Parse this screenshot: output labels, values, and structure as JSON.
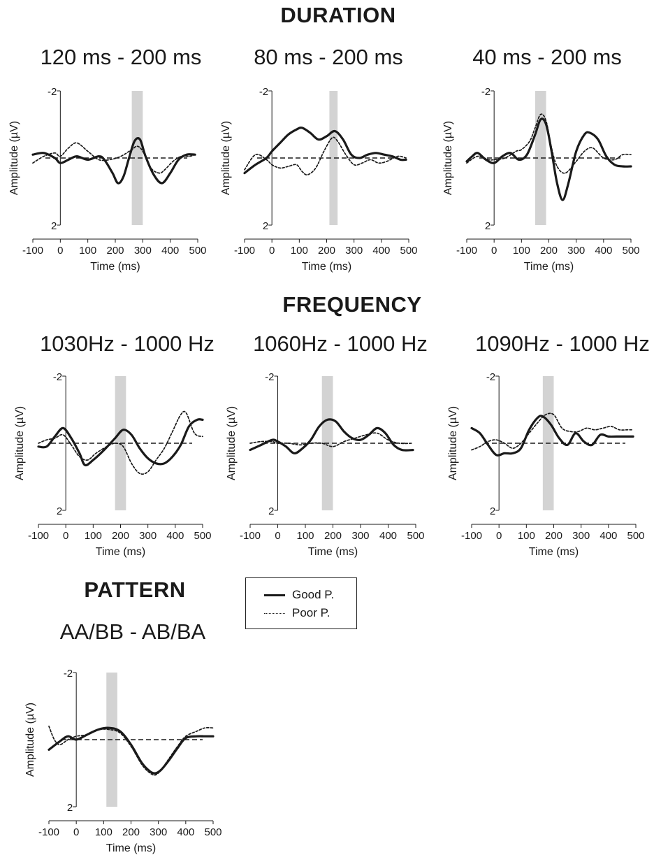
{
  "sections": {
    "duration": "DURATION",
    "frequency": "FREQUENCY",
    "pattern": "PATTERN"
  },
  "legend": {
    "good": "Good P.",
    "poor": "Poor P."
  },
  "colors": {
    "good": "#1a1a1a",
    "poor": "#1a1a1a",
    "window": "#d3d3d3",
    "baseline": "#1a1a1a"
  },
  "chart_data": [
    {
      "id": "dur120",
      "type": "line",
      "title": "120 ms - 200 ms",
      "xlabel": "Time (ms)",
      "ylabel": "Amplitude (µV)",
      "xlim": [
        -100,
        500
      ],
      "ylim": [
        -2,
        2
      ],
      "y_inverted": true,
      "xticks": [
        "-100",
        "0",
        "100",
        "200",
        "300",
        "400",
        "500"
      ],
      "yticks": [
        "-2",
        "2"
      ],
      "window": [
        260,
        300
      ],
      "series": [
        {
          "name": "Good P.",
          "style": "solid",
          "x": [
            -100,
            -60,
            -20,
            0,
            30,
            60,
            100,
            140,
            160,
            190,
            210,
            230,
            250,
            270,
            290,
            310,
            340,
            370,
            400,
            430,
            460,
            490
          ],
          "y": [
            -0.1,
            -0.15,
            0.0,
            0.15,
            0.05,
            -0.05,
            0.05,
            -0.05,
            0.05,
            0.45,
            0.75,
            0.55,
            0.0,
            -0.5,
            -0.55,
            -0.05,
            0.5,
            0.75,
            0.45,
            0.05,
            -0.1,
            -0.1
          ]
        },
        {
          "name": "Poor P.",
          "style": "dotted",
          "x": [
            -100,
            -60,
            -20,
            0,
            30,
            60,
            100,
            140,
            180,
            220,
            260,
            280,
            300,
            330,
            360,
            380,
            410,
            440,
            470,
            490
          ],
          "y": [
            0.15,
            -0.05,
            -0.15,
            -0.05,
            -0.3,
            -0.45,
            -0.2,
            0.05,
            0.05,
            -0.05,
            -0.25,
            -0.35,
            -0.2,
            0.3,
            0.45,
            0.35,
            0.1,
            -0.05,
            -0.05,
            -0.1
          ]
        }
      ]
    },
    {
      "id": "dur80",
      "type": "line",
      "title": "80 ms - 200 ms",
      "xlabel": "Time (ms)",
      "ylabel": "Amplitude (µV)",
      "xlim": [
        -100,
        500
      ],
      "ylim": [
        -2,
        2
      ],
      "y_inverted": true,
      "xticks": [
        "-100",
        "0",
        "100",
        "200",
        "300",
        "400",
        "500"
      ],
      "yticks": [
        "-2",
        "2"
      ],
      "window": [
        210,
        240
      ],
      "series": [
        {
          "name": "Good P.",
          "style": "solid",
          "x": [
            -100,
            -60,
            -20,
            0,
            30,
            60,
            90,
            110,
            140,
            170,
            200,
            230,
            260,
            290,
            320,
            350,
            380,
            410,
            440,
            470,
            490
          ],
          "y": [
            0.45,
            0.2,
            0.0,
            -0.2,
            -0.45,
            -0.7,
            -0.85,
            -0.9,
            -0.75,
            -0.55,
            -0.65,
            -0.8,
            -0.55,
            -0.1,
            0.0,
            -0.1,
            -0.15,
            -0.1,
            -0.05,
            0.05,
            0.05
          ]
        },
        {
          "name": "Poor P.",
          "style": "dotted",
          "x": [
            -100,
            -60,
            -20,
            0,
            30,
            60,
            90,
            110,
            130,
            160,
            190,
            220,
            240,
            270,
            300,
            330,
            360,
            390,
            420,
            460,
            490
          ],
          "y": [
            0.35,
            -0.1,
            0.05,
            0.2,
            0.3,
            0.25,
            0.2,
            0.4,
            0.5,
            0.3,
            -0.2,
            -0.6,
            -0.5,
            -0.1,
            0.2,
            0.15,
            0.05,
            0.15,
            0.1,
            -0.05,
            0.0
          ]
        }
      ]
    },
    {
      "id": "dur40",
      "type": "line",
      "title": "40 ms - 200 ms",
      "xlabel": "Time (ms)",
      "ylabel": "Amplitude (µV)",
      "xlim": [
        -100,
        500
      ],
      "ylim": [
        -2,
        2
      ],
      "y_inverted": true,
      "xticks": [
        "-100",
        "0",
        "100",
        "200",
        "300",
        "400",
        "500"
      ],
      "yticks": [
        "-2",
        "2"
      ],
      "window": [
        150,
        190
      ],
      "series": [
        {
          "name": "Good P.",
          "style": "solid",
          "x": [
            -100,
            -80,
            -60,
            -30,
            0,
            30,
            60,
            90,
            120,
            150,
            170,
            190,
            210,
            230,
            250,
            270,
            300,
            330,
            350,
            380,
            410,
            440,
            470,
            500
          ],
          "y": [
            0.1,
            -0.05,
            -0.15,
            0.05,
            0.15,
            -0.05,
            -0.15,
            0.05,
            -0.1,
            -0.7,
            -1.15,
            -1.0,
            -0.2,
            0.75,
            1.25,
            0.8,
            -0.2,
            -0.7,
            -0.75,
            -0.55,
            -0.05,
            0.2,
            0.25,
            0.25
          ]
        },
        {
          "name": "Poor P.",
          "style": "dotted",
          "x": [
            -100,
            -60,
            -20,
            0,
            40,
            80,
            100,
            130,
            150,
            170,
            190,
            210,
            230,
            260,
            300,
            330,
            360,
            400,
            440,
            470,
            500
          ],
          "y": [
            0.15,
            -0.05,
            0.05,
            0.05,
            0.0,
            -0.2,
            -0.25,
            -0.5,
            -0.9,
            -1.3,
            -1.1,
            -0.3,
            0.25,
            0.45,
            0.1,
            -0.2,
            -0.3,
            0.0,
            0.05,
            -0.1,
            -0.1
          ]
        }
      ]
    },
    {
      "id": "freq1030",
      "type": "line",
      "title": "1030Hz - 1000 Hz",
      "xlabel": "Time (ms)",
      "ylabel": "Amplitude (µV)",
      "xlim": [
        -100,
        500
      ],
      "ylim": [
        -2,
        2
      ],
      "y_inverted": true,
      "xticks": [
        "-100",
        "0",
        "100",
        "200",
        "300",
        "400",
        "500"
      ],
      "yticks": [
        "-2",
        "2"
      ],
      "window": [
        180,
        220
      ],
      "series": [
        {
          "name": "Good P.",
          "style": "solid",
          "x": [
            -100,
            -70,
            -40,
            -10,
            20,
            50,
            70,
            100,
            140,
            180,
            210,
            240,
            270,
            300,
            330,
            360,
            390,
            420,
            450,
            480,
            500
          ],
          "y": [
            0.1,
            0.1,
            -0.2,
            -0.45,
            -0.15,
            0.3,
            0.65,
            0.5,
            0.2,
            -0.15,
            -0.4,
            -0.25,
            0.15,
            0.45,
            0.6,
            0.6,
            0.4,
            0.05,
            -0.5,
            -0.7,
            -0.7
          ]
        },
        {
          "name": "Poor P.",
          "style": "dotted",
          "x": [
            -100,
            -70,
            -40,
            -10,
            20,
            50,
            80,
            110,
            150,
            180,
            210,
            240,
            270,
            300,
            330,
            360,
            390,
            420,
            440,
            470,
            500
          ],
          "y": [
            0.0,
            -0.1,
            -0.15,
            -0.25,
            0.05,
            0.4,
            0.5,
            0.3,
            0.1,
            0.0,
            0.1,
            0.6,
            0.9,
            0.85,
            0.5,
            0.15,
            -0.35,
            -0.85,
            -0.9,
            -0.3,
            -0.2
          ]
        }
      ]
    },
    {
      "id": "freq1060",
      "type": "line",
      "title": "1060Hz - 1000 Hz",
      "xlabel": "Time (ms)",
      "ylabel": "Amplitude (µV)",
      "xlim": [
        -100,
        500
      ],
      "ylim": [
        -2,
        2
      ],
      "y_inverted": true,
      "xticks": [
        "-100",
        "0",
        "100",
        "200",
        "300",
        "400",
        "500"
      ],
      "yticks": [
        "-2",
        "2"
      ],
      "window": [
        160,
        200
      ],
      "series": [
        {
          "name": "Good P.",
          "style": "solid",
          "x": [
            -100,
            -60,
            -20,
            0,
            30,
            60,
            90,
            120,
            150,
            180,
            210,
            240,
            270,
            300,
            330,
            360,
            390,
            420,
            450,
            490
          ],
          "y": [
            0.2,
            0.05,
            -0.1,
            -0.05,
            0.1,
            0.3,
            0.15,
            -0.1,
            -0.5,
            -0.7,
            -0.65,
            -0.35,
            -0.15,
            -0.1,
            -0.25,
            -0.45,
            -0.3,
            0.05,
            0.2,
            0.2
          ]
        },
        {
          "name": "Poor P.",
          "style": "dotted",
          "x": [
            -100,
            -60,
            -20,
            0,
            40,
            80,
            120,
            160,
            200,
            240,
            280,
            320,
            360,
            400,
            440,
            490
          ],
          "y": [
            0.0,
            -0.05,
            -0.05,
            0.0,
            0.0,
            0.05,
            0.0,
            0.0,
            0.1,
            -0.05,
            -0.15,
            -0.25,
            -0.3,
            -0.1,
            0.0,
            0.0
          ]
        }
      ]
    },
    {
      "id": "freq1090",
      "type": "line",
      "title": "1090Hz - 1000 Hz",
      "xlabel": "Time (ms)",
      "ylabel": "Amplitude (µV)",
      "xlim": [
        -100,
        500
      ],
      "ylim": [
        -2,
        2
      ],
      "y_inverted": true,
      "xticks": [
        "-100",
        "0",
        "100",
        "200",
        "300",
        "400",
        "500"
      ],
      "yticks": [
        "-2",
        "2"
      ],
      "window": [
        160,
        200
      ],
      "series": [
        {
          "name": "Good P.",
          "style": "solid",
          "x": [
            -100,
            -70,
            -40,
            -10,
            20,
            50,
            80,
            110,
            140,
            160,
            190,
            220,
            250,
            280,
            310,
            340,
            370,
            400,
            430,
            460,
            490
          ],
          "y": [
            -0.45,
            -0.3,
            0.05,
            0.35,
            0.3,
            0.3,
            0.15,
            -0.4,
            -0.75,
            -0.8,
            -0.55,
            -0.15,
            0.05,
            -0.3,
            -0.05,
            0.05,
            -0.25,
            -0.2,
            -0.2,
            -0.2,
            -0.2
          ]
        },
        {
          "name": "Poor P.",
          "style": "dotted",
          "x": [
            -100,
            -70,
            -40,
            -10,
            20,
            50,
            80,
            110,
            140,
            170,
            200,
            230,
            260,
            290,
            320,
            350,
            380,
            410,
            440,
            470,
            490
          ],
          "y": [
            0.2,
            0.1,
            -0.05,
            -0.1,
            0.0,
            0.15,
            0.0,
            -0.3,
            -0.6,
            -0.85,
            -0.85,
            -0.45,
            -0.35,
            -0.35,
            -0.45,
            -0.4,
            -0.45,
            -0.5,
            -0.4,
            -0.4,
            -0.4
          ]
        }
      ]
    },
    {
      "id": "pattern",
      "type": "line",
      "title": "AA/BB - AB/BA",
      "xlabel": "Time (ms)",
      "ylabel": "Amplitude (µV)",
      "xlim": [
        -100,
        500
      ],
      "ylim": [
        -2,
        2
      ],
      "y_inverted": true,
      "xticks": [
        "-100",
        "0",
        "100",
        "200",
        "300",
        "400",
        "500"
      ],
      "yticks": [
        "-2",
        "2"
      ],
      "window": [
        110,
        150
      ],
      "series": [
        {
          "name": "Good P.",
          "style": "solid",
          "x": [
            -100,
            -60,
            -30,
            0,
            40,
            80,
            120,
            160,
            200,
            240,
            270,
            290,
            310,
            340,
            370,
            400,
            440,
            470,
            500
          ],
          "y": [
            0.3,
            0.05,
            -0.1,
            0.0,
            -0.15,
            -0.3,
            -0.35,
            -0.25,
            0.15,
            0.7,
            0.95,
            1.0,
            0.9,
            0.6,
            0.25,
            -0.05,
            -0.1,
            -0.1,
            -0.1
          ]
        },
        {
          "name": "Poor P.",
          "style": "dotted",
          "x": [
            -100,
            -80,
            -60,
            -30,
            0,
            40,
            80,
            120,
            160,
            200,
            240,
            270,
            290,
            310,
            340,
            370,
            400,
            440,
            470,
            500
          ],
          "y": [
            -0.4,
            0.0,
            0.15,
            0.0,
            -0.1,
            -0.15,
            -0.3,
            -0.3,
            -0.2,
            0.2,
            0.75,
            1.0,
            1.05,
            0.9,
            0.55,
            0.2,
            -0.1,
            -0.25,
            -0.35,
            -0.35
          ]
        }
      ]
    }
  ]
}
